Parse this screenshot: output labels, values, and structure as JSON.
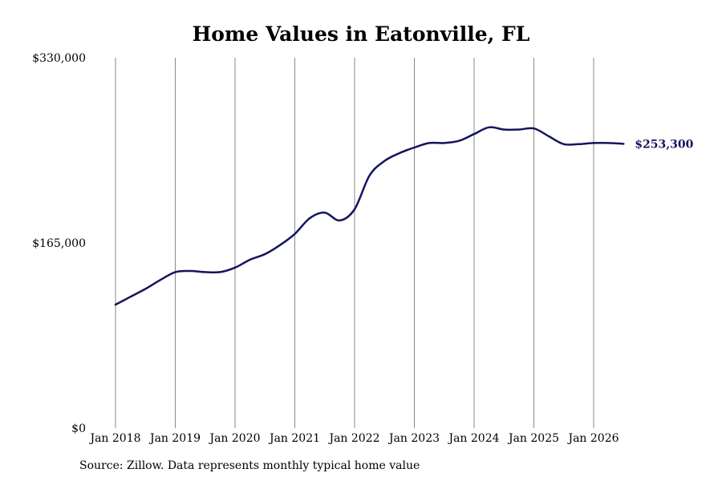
{
  "chart_data": {
    "type": "line",
    "title": "Home Values in Eatonville, FL",
    "source": "Source: Zillow. Data represents monthly typical home value",
    "ylim": [
      0,
      330000
    ],
    "y_ticks": [
      "$0",
      "$165,000",
      "$330,000"
    ],
    "x_ticks": [
      "Jan 2018",
      "Jan 2019",
      "Jan 2020",
      "Jan 2021",
      "Jan 2022",
      "Jan 2023",
      "Jan 2024",
      "Jan 2025",
      "Jan 2026"
    ],
    "end_label": "$253,300",
    "grid": "vertical",
    "line_color": "#14145e",
    "series": [
      {
        "x": [
          "2018-01",
          "2018-04",
          "2018-07",
          "2018-10",
          "2019-01",
          "2019-04",
          "2019-07",
          "2019-10",
          "2020-01",
          "2020-04",
          "2020-07",
          "2020-10",
          "2021-01",
          "2021-04",
          "2021-07",
          "2021-10",
          "2022-01",
          "2022-04",
          "2022-07",
          "2022-10",
          "2023-01",
          "2023-04",
          "2023-07",
          "2023-10",
          "2024-01",
          "2024-04",
          "2024-07",
          "2024-10",
          "2025-01",
          "2025-04",
          "2025-07",
          "2025-10",
          "2026-01",
          "2026-04",
          "2026-07"
        ],
        "values": [
          110000,
          117000,
          124000,
          132000,
          139000,
          140000,
          139000,
          139000,
          143000,
          150000,
          155000,
          163000,
          173000,
          187000,
          192000,
          185000,
          195000,
          225000,
          238000,
          245000,
          250000,
          254000,
          254000,
          256000,
          262000,
          268000,
          266000,
          266000,
          267000,
          260000,
          253000,
          253000,
          254000,
          254000,
          253300
        ]
      }
    ]
  }
}
